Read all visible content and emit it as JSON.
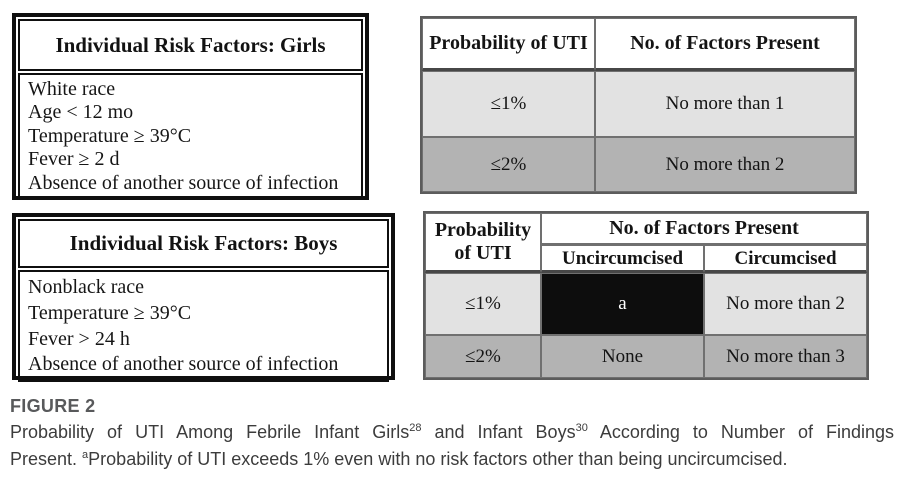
{
  "colors": {
    "row_light": "#e2e2e2",
    "row_dark": "#b3b3b3",
    "highlight_cell_black": "#0d0d0d",
    "left_box_border": "#0f0f0f",
    "grid_border": "#707070",
    "figure_label_gray": "#58595b",
    "caption_text": "#3c3c3c"
  },
  "girls_box": {
    "title": "Individual Risk Factors: Girls",
    "factors": [
      "White race",
      "Age < 12 mo",
      "Temperature ≥ 39°C",
      "Fever ≥ 2 d",
      "Absence of another source of infection"
    ]
  },
  "boys_box": {
    "title": "Individual Risk Factors: Boys",
    "factors": [
      "Nonblack race",
      "Temperature ≥ 39°C",
      "Fever > 24 h",
      "Absence of another source of infection"
    ]
  },
  "girls_table": {
    "col1_header": "Probability of UTI",
    "col2_header": "No. of Factors Present",
    "rows": [
      {
        "probability": "≤1%",
        "factors": "No more than 1"
      },
      {
        "probability": "≤2%",
        "factors": "No more than 2"
      }
    ]
  },
  "boys_table": {
    "col1_header": "Probability of UTI",
    "group_header": "No. of Factors Present",
    "subheaders": {
      "uncircumcised": "Uncircumcised",
      "circumcised": "Circumcised"
    },
    "rows": [
      {
        "probability": "≤1%",
        "uncircumcised": "a",
        "circumcised": "No more than 2"
      },
      {
        "probability": "≤2%",
        "uncircumcised": "None",
        "circumcised": "No more than 3"
      }
    ]
  },
  "caption": {
    "label": "FIGURE 2",
    "l1a": "Probability of UTI Among Febrile Infant Girls",
    "ref_girls": "28",
    "l1b": " and Infant Boys",
    "ref_boys": "30",
    "l1c": " According to Number of Findings",
    "l2a": "Present. ",
    "note_marker": "a",
    "l2b": "Probability of UTI exceeds 1% even with no risk factors other than being uncircumcised."
  },
  "chart_data": [
    {
      "type": "table",
      "title": "Individual Risk Factors: Girls",
      "rows": [
        "White race",
        "Age < 12 mo",
        "Temperature ≥ 39°C",
        "Fever ≥ 2 d",
        "Absence of another source of infection"
      ]
    },
    {
      "type": "table",
      "title": "Probability of UTI vs No. of Factors Present (Girls)",
      "columns": [
        "Probability of UTI",
        "No. of Factors Present"
      ],
      "rows": [
        [
          "≤1%",
          "No more than 1"
        ],
        [
          "≤2%",
          "No more than 2"
        ]
      ]
    },
    {
      "type": "table",
      "title": "Individual Risk Factors: Boys",
      "rows": [
        "Nonblack race",
        "Temperature ≥ 39°C",
        "Fever > 24 h",
        "Absence of another source of infection"
      ]
    },
    {
      "type": "table",
      "title": "Probability of UTI vs No. of Factors Present (Boys)",
      "columns": [
        "Probability of UTI",
        "Uncircumcised",
        "Circumcised"
      ],
      "rows": [
        [
          "≤1%",
          "a",
          "No more than 2"
        ],
        [
          "≤2%",
          "None",
          "No more than 3"
        ]
      ]
    }
  ]
}
